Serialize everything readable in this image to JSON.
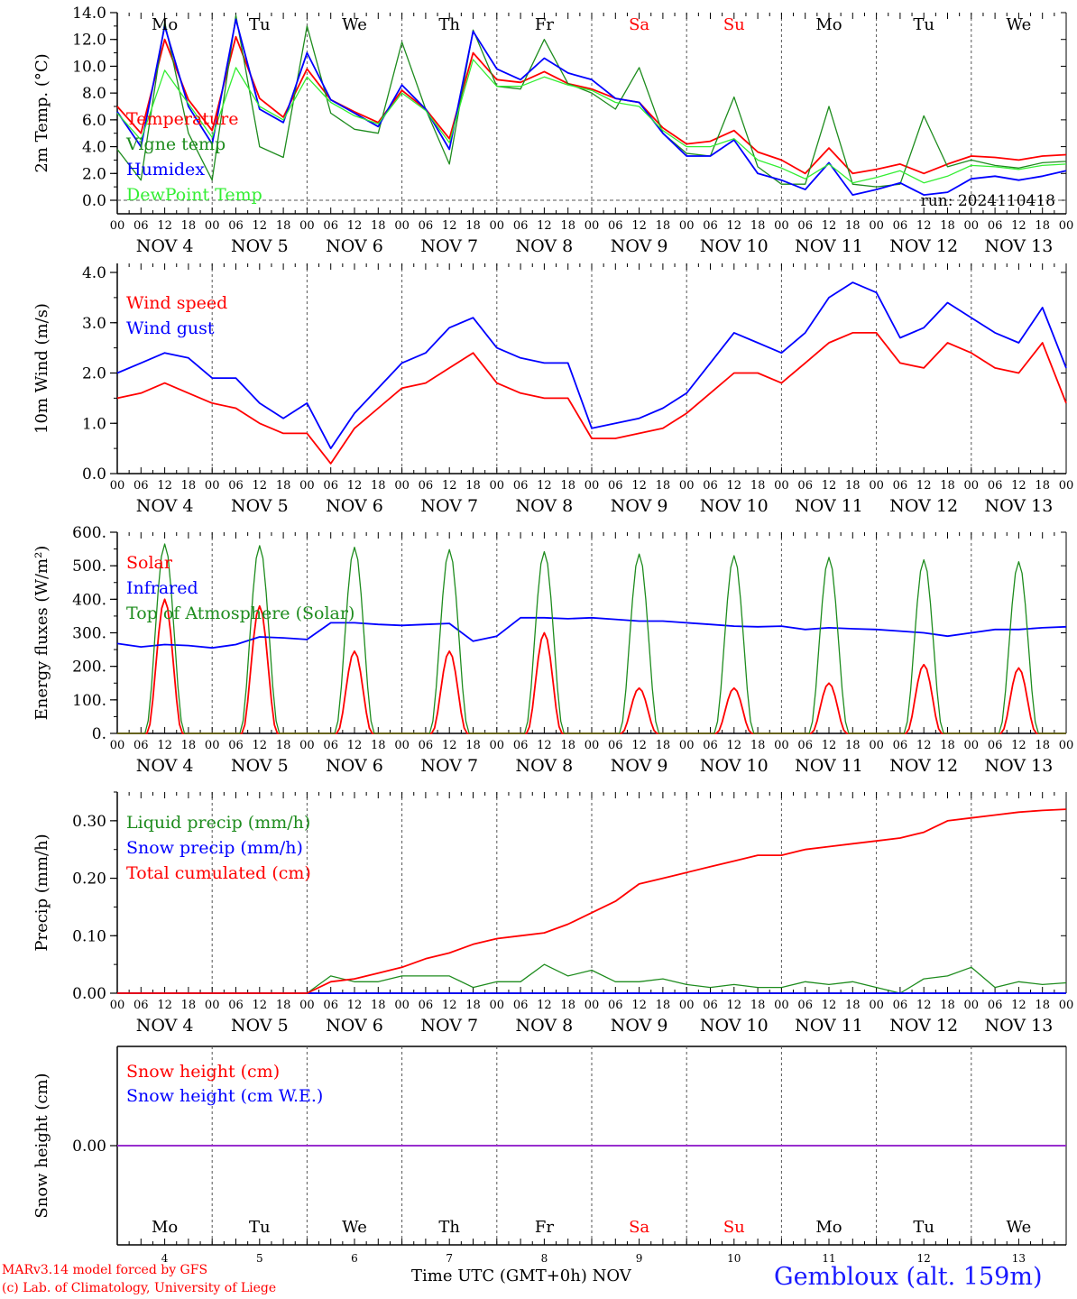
{
  "footer": {
    "credit_line1": "MARv3.14 model forced by GFS",
    "credit_line2": "(c) Lab. of Climatology, University of Liege",
    "x_axis_title": "Time UTC (GMT+0h) NOV",
    "station": "Gembloux (alt. 159m)"
  },
  "colors": {
    "red": "#ff0000",
    "green": "#1e8c1e",
    "blue": "#0000ff",
    "lightgreen": "#33ee33",
    "purple": "#8a2be2",
    "weekend": "#ff0000",
    "weekday": "#000000"
  },
  "time_axis": {
    "day_names": [
      "Mo",
      "Tu",
      "We",
      "Th",
      "Fr",
      "Sa",
      "Su",
      "Mo",
      "Tu",
      "We"
    ],
    "weekend_flags": [
      false,
      false,
      false,
      false,
      false,
      true,
      true,
      false,
      false,
      false
    ],
    "day_labels": [
      "NOV  4",
      "NOV  5",
      "NOV  6",
      "NOV  7",
      "NOV  8",
      "NOV  9",
      "NOV 10",
      "NOV 11",
      "NOV 12",
      "NOV 13"
    ],
    "day_numbers": [
      "4",
      "5",
      "6",
      "7",
      "8",
      "9",
      "10",
      "11",
      "12",
      "13"
    ],
    "hour_ticks": [
      "00",
      "06",
      "12",
      "18"
    ],
    "end_tick": "00"
  },
  "chart_data": [
    {
      "type": "line",
      "ylabel": "2m Temp. (°C)",
      "ylim": [
        0,
        14
      ],
      "yticks": [
        "0.0",
        "2.0",
        "4.0",
        "6.0",
        "8.0",
        "10.0",
        "12.0",
        "14.0"
      ],
      "annotation": "run: 2024110418",
      "zero_line": "dashed",
      "x_unit": "hours since Nov 4 00 UTC",
      "series": [
        {
          "name": "Temperature",
          "color": "red",
          "x": [
            0,
            6,
            12,
            18,
            24,
            30,
            36,
            42,
            48,
            54,
            60,
            66,
            72,
            78,
            84,
            90,
            96,
            102,
            108,
            114,
            120,
            126,
            132,
            138,
            144,
            150,
            156,
            162,
            168,
            174,
            180,
            186,
            192,
            198,
            204,
            210,
            216,
            222,
            228,
            234,
            240
          ],
          "y": [
            7.0,
            5.0,
            12.0,
            7.5,
            5.2,
            12.2,
            7.6,
            6.2,
            9.8,
            7.5,
            6.6,
            5.8,
            8.2,
            6.8,
            4.6,
            11.0,
            9.0,
            8.8,
            9.6,
            8.7,
            8.3,
            7.6,
            7.3,
            5.4,
            4.2,
            4.4,
            5.2,
            3.6,
            3.0,
            2.0,
            3.9,
            2.0,
            2.3,
            2.7,
            2.0,
            2.7,
            3.3,
            3.2,
            3.0,
            3.3,
            3.4
          ]
        },
        {
          "name": "Vigne temp",
          "color": "green",
          "x": [
            0,
            6,
            12,
            18,
            24,
            30,
            36,
            42,
            48,
            54,
            60,
            66,
            72,
            78,
            84,
            90,
            96,
            102,
            108,
            114,
            120,
            126,
            132,
            138,
            144,
            150,
            156,
            162,
            168,
            174,
            180,
            186,
            192,
            198,
            204,
            210,
            216,
            222,
            228,
            234,
            240
          ],
          "y": [
            3.8,
            1.5,
            13.3,
            5.0,
            1.5,
            13.8,
            4.0,
            3.2,
            13.0,
            6.5,
            5.3,
            5.0,
            11.8,
            6.8,
            2.7,
            12.7,
            8.5,
            8.3,
            12.0,
            8.7,
            8.0,
            6.8,
            9.9,
            5.0,
            3.5,
            3.3,
            7.7,
            2.5,
            1.2,
            1.2,
            7.0,
            1.2,
            1.0,
            1.2,
            6.3,
            2.5,
            3.0,
            2.6,
            2.4,
            2.8,
            2.9
          ]
        },
        {
          "name": "Humidex",
          "color": "blue",
          "x": [
            0,
            6,
            12,
            18,
            24,
            30,
            36,
            42,
            48,
            54,
            60,
            66,
            72,
            78,
            84,
            90,
            96,
            102,
            108,
            114,
            120,
            126,
            132,
            138,
            144,
            150,
            156,
            162,
            168,
            174,
            180,
            186,
            192,
            198,
            204,
            210,
            216,
            222,
            228,
            234,
            240
          ],
          "y": [
            6.6,
            4.0,
            13.0,
            7.0,
            4.2,
            13.5,
            6.8,
            5.8,
            11.0,
            7.5,
            6.5,
            5.5,
            8.6,
            6.8,
            3.8,
            12.6,
            9.8,
            9.0,
            10.6,
            9.5,
            9.0,
            7.6,
            7.3,
            5.0,
            3.3,
            3.3,
            4.5,
            2.0,
            1.5,
            0.8,
            2.8,
            0.4,
            0.8,
            1.3,
            0.4,
            0.6,
            1.6,
            1.8,
            1.5,
            1.8,
            2.2
          ]
        },
        {
          "name": "DewPoint Temp",
          "color": "lightgreen",
          "x": [
            0,
            6,
            12,
            18,
            24,
            30,
            36,
            42,
            48,
            54,
            60,
            66,
            72,
            78,
            84,
            90,
            96,
            102,
            108,
            114,
            120,
            126,
            132,
            138,
            144,
            150,
            156,
            162,
            168,
            174,
            180,
            186,
            192,
            198,
            204,
            210,
            216,
            222,
            228,
            234,
            240
          ],
          "y": [
            6.5,
            4.5,
            9.7,
            7.2,
            4.7,
            9.9,
            7.0,
            6.0,
            9.2,
            7.3,
            6.3,
            5.7,
            8.0,
            6.7,
            4.3,
            10.5,
            8.5,
            8.5,
            9.2,
            8.6,
            8.2,
            7.3,
            7.0,
            5.2,
            4.0,
            4.0,
            4.6,
            3.0,
            2.4,
            1.6,
            2.7,
            1.3,
            1.7,
            2.2,
            1.3,
            1.8,
            2.6,
            2.5,
            2.3,
            2.6,
            2.7
          ]
        }
      ]
    },
    {
      "type": "line",
      "ylabel": "10m Wind (m/s)",
      "ylim": [
        0,
        4
      ],
      "yticks": [
        "0.0",
        "1.0",
        "2.0",
        "3.0",
        "4.0"
      ],
      "x_unit": "hours since Nov 4 00 UTC",
      "series": [
        {
          "name": "Wind speed",
          "color": "red",
          "x": [
            0,
            6,
            12,
            18,
            24,
            30,
            36,
            42,
            48,
            54,
            60,
            66,
            72,
            78,
            84,
            90,
            96,
            102,
            108,
            114,
            120,
            126,
            132,
            138,
            144,
            150,
            156,
            162,
            168,
            174,
            180,
            186,
            192,
            198,
            204,
            210,
            216,
            222,
            228,
            234,
            240
          ],
          "y": [
            1.5,
            1.6,
            1.8,
            1.6,
            1.4,
            1.3,
            1.0,
            0.8,
            0.8,
            0.2,
            0.9,
            1.3,
            1.7,
            1.8,
            2.1,
            2.4,
            1.8,
            1.6,
            1.5,
            1.5,
            0.7,
            0.7,
            0.8,
            0.9,
            1.2,
            1.6,
            2.0,
            2.0,
            1.8,
            2.2,
            2.6,
            2.8,
            2.8,
            2.2,
            2.1,
            2.6,
            2.4,
            2.1,
            2.0,
            2.6,
            1.4
          ]
        },
        {
          "name": "Wind gust",
          "color": "blue",
          "x": [
            0,
            6,
            12,
            18,
            24,
            30,
            36,
            42,
            48,
            54,
            60,
            66,
            72,
            78,
            84,
            90,
            96,
            102,
            108,
            114,
            120,
            126,
            132,
            138,
            144,
            150,
            156,
            162,
            168,
            174,
            180,
            186,
            192,
            198,
            204,
            210,
            216,
            222,
            228,
            234,
            240
          ],
          "y": [
            2.0,
            2.2,
            2.4,
            2.3,
            1.9,
            1.9,
            1.4,
            1.1,
            1.4,
            0.5,
            1.2,
            1.7,
            2.2,
            2.4,
            2.9,
            3.1,
            2.5,
            2.3,
            2.2,
            2.2,
            0.9,
            1.0,
            1.1,
            1.3,
            1.6,
            2.2,
            2.8,
            2.6,
            2.4,
            2.8,
            3.5,
            3.8,
            3.6,
            2.7,
            2.9,
            3.4,
            3.1,
            2.8,
            2.6,
            3.3,
            2.1
          ]
        }
      ]
    },
    {
      "type": "line",
      "ylabel": "Energy fluxes (W/m²)",
      "ylim": [
        0,
        600
      ],
      "yticks": [
        "0.",
        "100.",
        "200.",
        "300.",
        "400.",
        "500.",
        "600."
      ],
      "x_unit": "hours since Nov 4 00 UTC",
      "series": [
        {
          "name": "Solar",
          "color": "red",
          "diurnal": true,
          "sunrise": 7.5,
          "sunset": 16.5,
          "peaks": [
            400,
            380,
            245,
            245,
            300,
            135,
            135,
            150,
            205,
            195
          ]
        },
        {
          "name": "Infrared",
          "color": "blue",
          "x": [
            0,
            6,
            12,
            18,
            24,
            30,
            36,
            42,
            48,
            54,
            60,
            66,
            72,
            78,
            84,
            90,
            96,
            102,
            108,
            114,
            120,
            126,
            132,
            138,
            144,
            150,
            156,
            162,
            168,
            174,
            180,
            186,
            192,
            198,
            204,
            210,
            216,
            222,
            228,
            234,
            240
          ],
          "y": [
            268,
            258,
            265,
            262,
            255,
            265,
            288,
            285,
            280,
            330,
            330,
            325,
            322,
            325,
            328,
            275,
            290,
            345,
            345,
            342,
            345,
            340,
            335,
            335,
            330,
            325,
            320,
            318,
            320,
            310,
            315,
            312,
            310,
            305,
            300,
            290,
            300,
            310,
            310,
            315,
            318
          ]
        },
        {
          "name": "Top of Atmosphere (Solar)",
          "color": "green",
          "diurnal": true,
          "sunrise": 7.0,
          "sunset": 17.0,
          "peaks": [
            565,
            560,
            555,
            548,
            542,
            535,
            530,
            525,
            518,
            512
          ]
        }
      ]
    },
    {
      "type": "line",
      "ylabel": "Precip (mm/h)",
      "ylim": [
        0,
        0.35
      ],
      "yticks": [
        "0.00",
        "0.10",
        "0.20",
        "0.30"
      ],
      "x_unit": "hours since Nov 4 00 UTC",
      "series": [
        {
          "name": "Liquid precip (mm/h)",
          "color": "green",
          "x": [
            0,
            6,
            12,
            18,
            24,
            30,
            36,
            42,
            48,
            54,
            60,
            66,
            72,
            78,
            84,
            90,
            96,
            102,
            108,
            114,
            120,
            126,
            132,
            138,
            144,
            150,
            156,
            162,
            168,
            174,
            180,
            186,
            192,
            198,
            204,
            210,
            216,
            222,
            228,
            234,
            240
          ],
          "y": [
            0.0,
            0.0,
            0.0,
            0.0,
            0.0,
            0.0,
            0.0,
            0.0,
            0.0,
            0.03,
            0.02,
            0.02,
            0.03,
            0.03,
            0.03,
            0.01,
            0.02,
            0.02,
            0.05,
            0.03,
            0.04,
            0.02,
            0.02,
            0.025,
            0.015,
            0.01,
            0.015,
            0.01,
            0.01,
            0.02,
            0.015,
            0.02,
            0.01,
            0.0,
            0.025,
            0.03,
            0.045,
            0.01,
            0.02,
            0.015,
            0.018
          ]
        },
        {
          "name": "Snow precip (mm/h)",
          "color": "blue",
          "x": [
            0,
            240
          ],
          "y": [
            0.0,
            0.0
          ]
        },
        {
          "name": "Total cumulated (cm)",
          "color": "red",
          "x": [
            0,
            6,
            12,
            18,
            24,
            30,
            36,
            42,
            48,
            54,
            60,
            66,
            72,
            78,
            84,
            90,
            96,
            102,
            108,
            114,
            120,
            126,
            132,
            138,
            144,
            150,
            156,
            162,
            168,
            174,
            180,
            186,
            192,
            198,
            204,
            210,
            216,
            222,
            228,
            234,
            240
          ],
          "y": [
            0.0,
            0.0,
            0.0,
            0.0,
            0.0,
            0.0,
            0.0,
            0.0,
            0.0,
            0.02,
            0.025,
            0.035,
            0.045,
            0.06,
            0.07,
            0.085,
            0.095,
            0.1,
            0.105,
            0.12,
            0.14,
            0.16,
            0.19,
            0.2,
            0.21,
            0.22,
            0.23,
            0.24,
            0.24,
            0.25,
            0.255,
            0.26,
            0.265,
            0.27,
            0.28,
            0.3,
            0.305,
            0.31,
            0.315,
            0.318,
            0.32
          ]
        }
      ]
    },
    {
      "type": "line",
      "ylabel": "Snow height (cm)",
      "ylim": [
        -1,
        1
      ],
      "yticks": [
        "0.00"
      ],
      "x_unit": "hours since Nov 4 00 UTC",
      "series": [
        {
          "name": "Snow height (cm)",
          "color": "red",
          "x": [
            0,
            240
          ],
          "y": [
            0,
            0
          ]
        },
        {
          "name": "Snow height (cm W.E.)",
          "color": "blue",
          "x": [
            0,
            240
          ],
          "y": [
            0,
            0
          ]
        }
      ]
    }
  ]
}
